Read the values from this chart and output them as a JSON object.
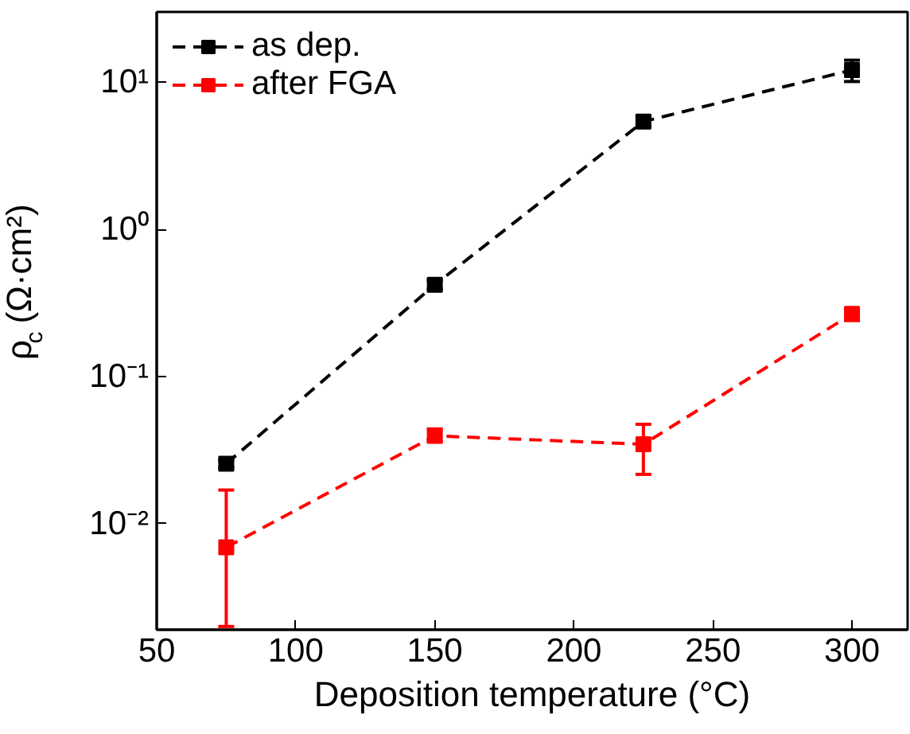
{
  "chart_data": {
    "type": "line",
    "xlabel": "Deposition temperature (°C)",
    "ylabel": "ρ$_{c}$ (Ω·cm²)",
    "x": [
      75,
      150,
      225,
      300
    ],
    "series": [
      {
        "name": "as dep.",
        "color": "#000000",
        "values": [
          0.0255,
          0.42,
          5.4,
          12.1
        ],
        "errors": [
          [
            0.024,
            0.027
          ],
          [
            0.39,
            0.45
          ],
          [
            5.0,
            5.9
          ],
          [
            10.1,
            14.1
          ]
        ]
      },
      {
        "name": "after FGA",
        "color": "#ff0000",
        "values": [
          0.0069,
          0.0395,
          0.0346,
          0.266
        ],
        "errors": [
          [
            0.002,
            0.0169
          ],
          [
            0.036,
            0.044
          ],
          [
            0.0216,
            0.0473
          ],
          [
            0.24,
            0.29
          ]
        ]
      }
    ],
    "log": "y",
    "xlim": [
      50,
      320
    ],
    "ylim": [
      0.0019,
      30
    ],
    "xticks": [
      50,
      100,
      150,
      200,
      250,
      300
    ],
    "yticks": [
      {
        "value": 0.01,
        "label": "10⁻²"
      },
      {
        "value": 0.1,
        "label": "10⁻¹"
      },
      {
        "value": 1,
        "label": "10⁰"
      },
      {
        "value": 10,
        "label": "10¹"
      }
    ],
    "marker": "square",
    "line_style": "dashed",
    "legend": "top left",
    "grid": false
  }
}
